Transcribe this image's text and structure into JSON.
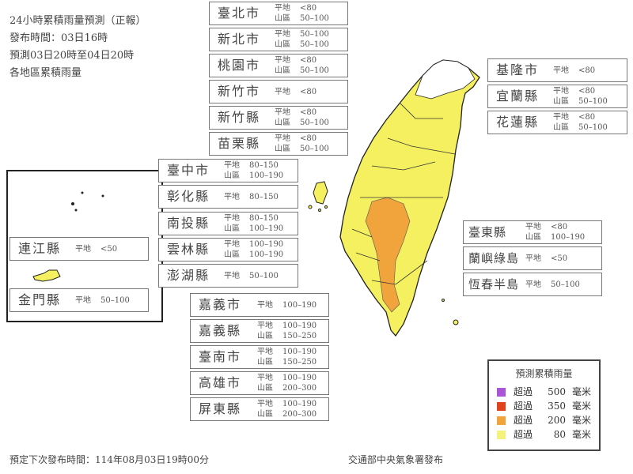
{
  "header": {
    "lines": [
      "24小時累積雨量預測（正報）",
      "發布時間：03日16時",
      "預測03日20時至04日20時",
      "各地區累積雨量"
    ]
  },
  "labels": {
    "plain": "平地",
    "mountain": "山區"
  },
  "north": [
    {
      "name": "臺北市",
      "plain": "<80",
      "mountain": "50–100"
    },
    {
      "name": "新北市",
      "plain": "50–100",
      "mountain": "50–100"
    },
    {
      "name": "桃園市",
      "plain": "<80",
      "mountain": "50–100"
    },
    {
      "name": "新竹市",
      "plain": "<80"
    },
    {
      "name": "新竹縣",
      "plain": "<80",
      "mountain": "50–100"
    },
    {
      "name": "苗栗縣",
      "plain": "<80",
      "mountain": "50–100"
    }
  ],
  "central": [
    {
      "name": "臺中市",
      "plain": "80–150",
      "mountain": "100–190"
    },
    {
      "name": "彰化縣",
      "plain": "80–150"
    },
    {
      "name": "南投縣",
      "plain": "80–150",
      "mountain": "100–190"
    },
    {
      "name": "雲林縣",
      "plain": "100–190",
      "mountain": "100–190"
    },
    {
      "name": "澎湖縣",
      "plain": "50–100"
    }
  ],
  "south": [
    {
      "name": "嘉義市",
      "plain": "100–190"
    },
    {
      "name": "嘉義縣",
      "plain": "100–190",
      "mountain": "150–250"
    },
    {
      "name": "臺南市",
      "plain": "100–190",
      "mountain": "150–250"
    },
    {
      "name": "高雄市",
      "plain": "100–190",
      "mountain": "200–300"
    },
    {
      "name": "屏東縣",
      "plain": "100–190",
      "mountain": "200–300"
    }
  ],
  "east_top": [
    {
      "name": "基隆市",
      "plain": "<80"
    },
    {
      "name": "宜蘭縣",
      "plain": "<80",
      "mountain": "50–100"
    },
    {
      "name": "花蓮縣",
      "plain": "<80",
      "mountain": "50–100"
    }
  ],
  "east_bottom": [
    {
      "name": "臺東縣",
      "plain": "<80",
      "mountain": "100–190"
    },
    {
      "name": "蘭嶼綠島",
      "plain": "<50"
    },
    {
      "name": "恆春半島",
      "plain": "50–100"
    }
  ],
  "inset": [
    {
      "name": "連江縣",
      "plain": "<50"
    },
    {
      "name": "金門縣",
      "plain": "50–100"
    }
  ],
  "legend": {
    "title": "預測累積雨量",
    "prefix": "超過",
    "unit": "毫米",
    "items": [
      {
        "value": "500",
        "color": "#a855d8"
      },
      {
        "value": "350",
        "color": "#e0441c"
      },
      {
        "value": "200",
        "color": "#f2a43c"
      },
      {
        "value": "80",
        "color": "#f4f27a"
      }
    ]
  },
  "map_colors": {
    "yellow": "#f4f060",
    "orange": "#f2a43c",
    "white": "#ffffff"
  },
  "footer": {
    "next": "預定下次發布時間：114年08月03日19時00分",
    "issuer": "交通部中央氣象署發布"
  }
}
